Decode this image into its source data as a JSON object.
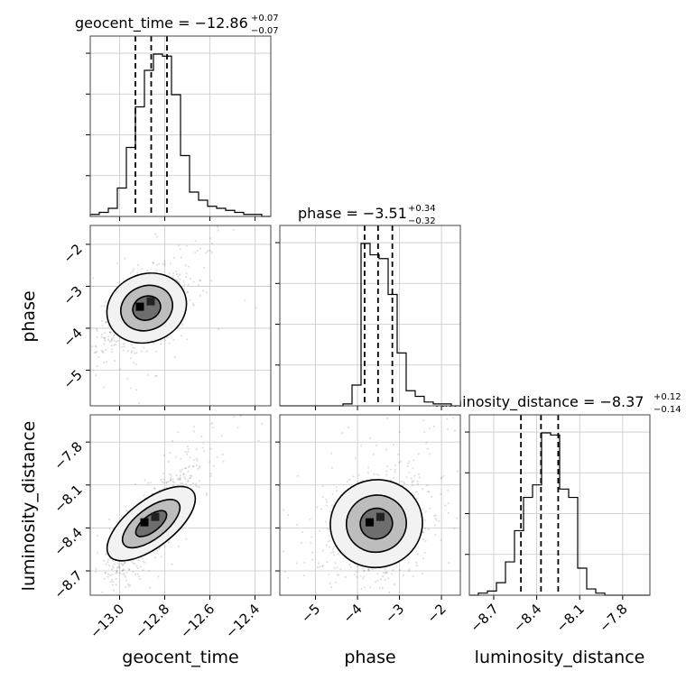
{
  "chart_data": {
    "type": "corner",
    "parameters": [
      "geocent_time",
      "phase",
      "luminosity_distance"
    ],
    "titles": [
      {
        "param": "geocent_time",
        "prefix": "geocent_time = ",
        "median": "−12.86",
        "plus": "+0.07",
        "minus": "−0.07"
      },
      {
        "param": "phase",
        "prefix": "phase = ",
        "median": "−3.51",
        "plus": "+0.34",
        "minus": "−0.32"
      },
      {
        "param": "luminosity_distance",
        "prefix": "luminosity_distance = ",
        "median": "−8.37",
        "plus": "+0.12",
        "minus": "−0.14"
      }
    ],
    "ranges": {
      "geocent_time": [
        -13.13,
        -12.33
      ],
      "phase": [
        -5.85,
        -1.55
      ],
      "luminosity_distance": [
        -8.87,
        -7.61
      ]
    },
    "ticks": {
      "geocent_time": {
        "values": [
          -13.0,
          -12.8,
          -12.6,
          -12.4
        ],
        "labels": [
          "−13.0",
          "−12.8",
          "−12.6",
          "−12.4"
        ]
      },
      "phase": {
        "values": [
          -5,
          -4,
          -3,
          -2
        ],
        "labels": [
          "−5",
          "−4",
          "−3",
          "−2"
        ]
      },
      "luminosity_distance": {
        "values": [
          -8.7,
          -8.4,
          -8.1,
          -7.8
        ],
        "labels": [
          "−8.7",
          "−8.4",
          "−8.1",
          "−7.8"
        ]
      }
    },
    "quantiles": {
      "geocent_time": [
        -12.93,
        -12.86,
        -12.79
      ],
      "phase": [
        -3.83,
        -3.51,
        -3.17
      ],
      "luminosity_distance": [
        -8.51,
        -8.37,
        -8.25
      ]
    },
    "histograms": {
      "geocent_time": {
        "edges_start": -13.13,
        "bin_width": 0.04,
        "counts": [
          1,
          2,
          4,
          14,
          34,
          54,
          72,
          80,
          79,
          60,
          30,
          12,
          8,
          5,
          4,
          3,
          2,
          1,
          1,
          0
        ]
      },
      "phase": {
        "edges_start": -5.85,
        "bin_width": 0.215,
        "counts": [
          0,
          0,
          0,
          0,
          0,
          0,
          0,
          1,
          11,
          86,
          80,
          78,
          59,
          28,
          8,
          5,
          2,
          1,
          1,
          0
        ]
      },
      "luminosity_distance": {
        "edges_start": -8.87,
        "bin_width": 0.063,
        "counts": [
          0,
          1,
          2,
          6,
          16,
          31,
          47,
          53,
          78,
          77,
          51,
          47,
          13,
          3,
          1,
          0,
          0,
          0,
          0,
          0
        ]
      }
    },
    "grid": true,
    "xlabels": [
      "geocent_time",
      "phase",
      "luminosity_distance"
    ],
    "ylabels": [
      "",
      "phase",
      "luminosity_distance"
    ]
  }
}
